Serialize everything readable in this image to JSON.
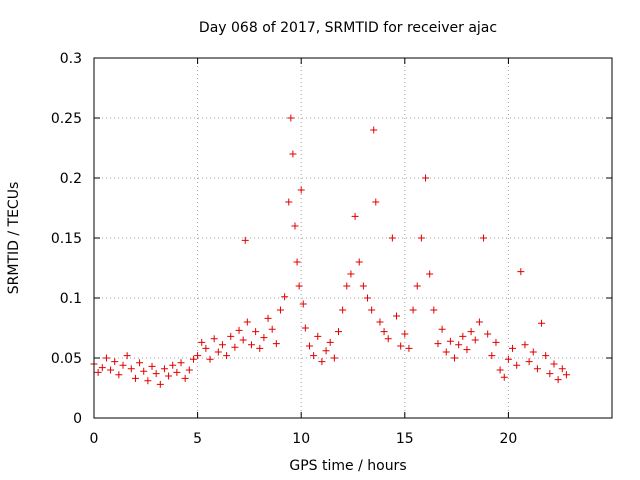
{
  "chart_data": {
    "type": "scatter",
    "title": "Day 068 of 2017, SRMTID for receiver ajac",
    "xlabel": "GPS time / hours",
    "ylabel": "SRMTID / TECUs",
    "xlim": [
      0,
      25
    ],
    "ylim": [
      0,
      0.3
    ],
    "grid": true,
    "marker": "+",
    "colors": {
      "series": "#e00000",
      "axis": "#000000",
      "grid": "#a0a0a0"
    },
    "x_tick_labels": [
      "0",
      "5",
      "10",
      "15",
      "20"
    ],
    "x_ticks": [
      0,
      5,
      10,
      15,
      20
    ],
    "y_tick_labels": [
      "0",
      "0.05",
      "0.1",
      "0.15",
      "0.2",
      "0.25",
      "0.3"
    ],
    "y_ticks": [
      0,
      0.05,
      0.1,
      0.15,
      0.2,
      0.25,
      0.3
    ],
    "series": [
      {
        "name": "SRMTID",
        "x": [
          0.0,
          0.2,
          0.4,
          0.6,
          0.8,
          1.0,
          1.2,
          1.4,
          1.6,
          1.8,
          2.0,
          2.2,
          2.4,
          2.6,
          2.8,
          3.0,
          3.2,
          3.4,
          3.6,
          3.8,
          4.0,
          4.2,
          4.4,
          4.6,
          4.8,
          5.0,
          5.2,
          5.4,
          5.6,
          5.8,
          6.0,
          6.2,
          6.4,
          6.6,
          6.8,
          7.0,
          7.2,
          7.3,
          7.4,
          7.6,
          7.8,
          8.0,
          8.2,
          8.4,
          8.6,
          8.8,
          9.0,
          9.2,
          9.4,
          9.5,
          9.6,
          9.7,
          9.8,
          9.9,
          10.0,
          10.1,
          10.2,
          10.4,
          10.6,
          10.8,
          11.0,
          11.2,
          11.4,
          11.6,
          11.8,
          12.0,
          12.2,
          12.4,
          12.6,
          12.8,
          13.0,
          13.2,
          13.4,
          13.5,
          13.6,
          13.8,
          14.0,
          14.2,
          14.4,
          14.6,
          14.8,
          15.0,
          15.2,
          15.4,
          15.6,
          15.8,
          16.0,
          16.2,
          16.4,
          16.6,
          16.8,
          17.0,
          17.2,
          17.4,
          17.6,
          17.8,
          18.0,
          18.2,
          18.4,
          18.6,
          18.8,
          19.0,
          19.2,
          19.4,
          19.6,
          19.8,
          20.0,
          20.2,
          20.4,
          20.6,
          20.8,
          21.0,
          21.2,
          21.4,
          21.6,
          21.8,
          22.0,
          22.2,
          22.4,
          22.6,
          22.8
        ],
        "y": [
          0.045,
          0.038,
          0.042,
          0.05,
          0.04,
          0.047,
          0.036,
          0.044,
          0.052,
          0.041,
          0.033,
          0.046,
          0.039,
          0.031,
          0.043,
          0.037,
          0.028,
          0.041,
          0.035,
          0.044,
          0.038,
          0.046,
          0.033,
          0.04,
          0.049,
          0.052,
          0.063,
          0.058,
          0.049,
          0.066,
          0.055,
          0.061,
          0.052,
          0.068,
          0.059,
          0.073,
          0.065,
          0.148,
          0.08,
          0.061,
          0.072,
          0.058,
          0.067,
          0.083,
          0.074,
          0.062,
          0.09,
          0.101,
          0.18,
          0.25,
          0.22,
          0.16,
          0.13,
          0.11,
          0.19,
          0.095,
          0.075,
          0.06,
          0.052,
          0.068,
          0.047,
          0.056,
          0.063,
          0.05,
          0.072,
          0.09,
          0.11,
          0.12,
          0.168,
          0.13,
          0.11,
          0.1,
          0.09,
          0.24,
          0.18,
          0.08,
          0.072,
          0.066,
          0.15,
          0.085,
          0.06,
          0.07,
          0.058,
          0.09,
          0.11,
          0.15,
          0.2,
          0.12,
          0.09,
          0.062,
          0.074,
          0.055,
          0.064,
          0.05,
          0.061,
          0.068,
          0.057,
          0.072,
          0.065,
          0.08,
          0.15,
          0.07,
          0.052,
          0.063,
          0.04,
          0.034,
          0.049,
          0.058,
          0.044,
          0.122,
          0.061,
          0.047,
          0.055,
          0.041,
          0.079,
          0.052,
          0.037,
          0.045,
          0.032,
          0.041,
          0.036
        ]
      }
    ]
  }
}
